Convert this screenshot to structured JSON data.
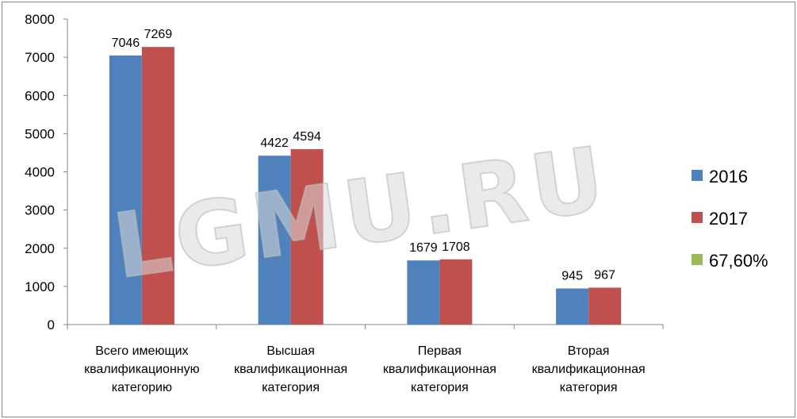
{
  "chart_data": {
    "type": "bar",
    "categories": [
      "Всего имеющих квалификационную категорию",
      "Высшая квалификационная категория",
      "Первая квалификационная категория",
      "Вторая квалификационная категория"
    ],
    "category_lines": [
      [
        "Всего имеющих",
        "квалификационную",
        "категорию"
      ],
      [
        "Высшая",
        "квалификационная",
        "категория"
      ],
      [
        "Первая",
        "квалификационная",
        "категория"
      ],
      [
        "Вторая",
        "квалификационная",
        "категория"
      ]
    ],
    "series": [
      {
        "name": "2016",
        "color": "#4F81BD",
        "values": [
          7046,
          4422,
          1679,
          945
        ]
      },
      {
        "name": "2017",
        "color": "#C0504D",
        "values": [
          7269,
          4594,
          1708,
          967
        ]
      },
      {
        "name": "67,60%",
        "color": "#9BBB59",
        "values": [
          null,
          null,
          null,
          null
        ]
      }
    ],
    "ylim": [
      0,
      8000
    ],
    "yticks": [
      0,
      1000,
      2000,
      3000,
      4000,
      5000,
      6000,
      7000,
      8000
    ],
    "legend_position": "right",
    "grid": false,
    "watermark": "LGMU.RU"
  }
}
